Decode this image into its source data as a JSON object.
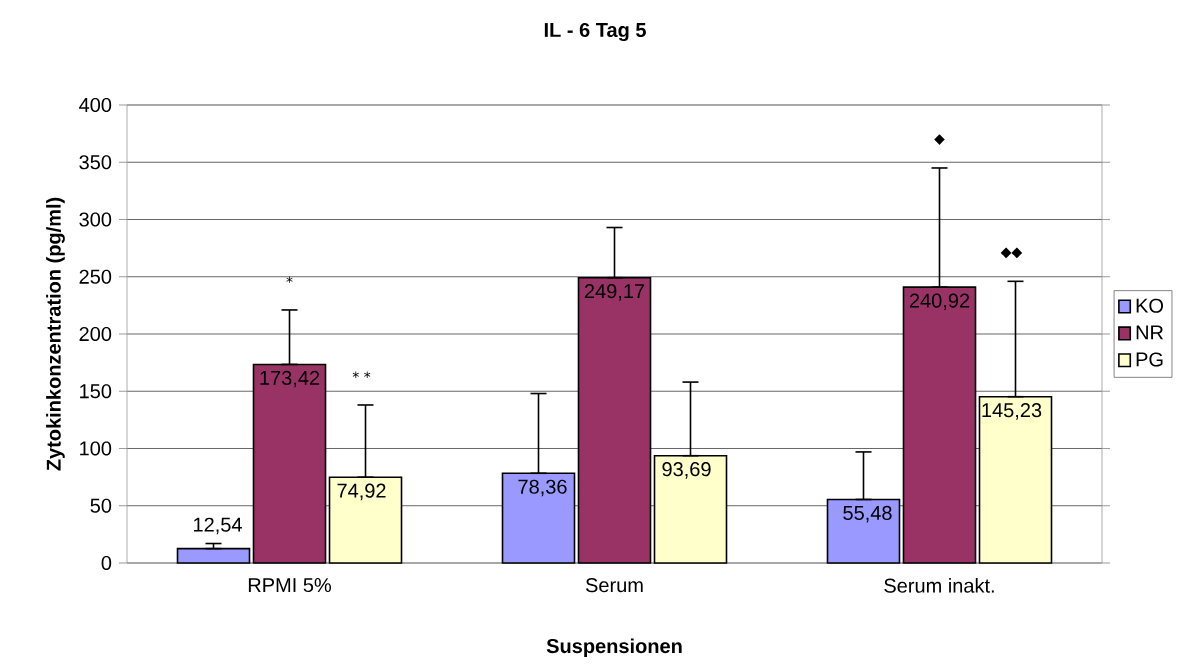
{
  "chart_data": {
    "type": "bar",
    "title": "IL - 6 Tag 5",
    "xlabel": "Suspensionen",
    "ylabel": "Zytokinkonzentration (pg/ml)",
    "categories": [
      "RPMI 5%",
      "Serum",
      "Serum inakt."
    ],
    "series": [
      {
        "name": "KO",
        "color": "#9999ff",
        "values": [
          12.54,
          78.36,
          55.48
        ],
        "value_labels": [
          "12,54",
          "78,36",
          "55,48"
        ],
        "errors": [
          [
            12.54,
            17
          ],
          [
            78.36,
            148
          ],
          [
            55.48,
            97
          ]
        ]
      },
      {
        "name": "NR",
        "color": "#993366",
        "values": [
          173.42,
          249.17,
          240.92
        ],
        "value_labels": [
          "173,42",
          "249,17",
          "240,92"
        ],
        "errors": [
          [
            173.42,
            221
          ],
          [
            249.17,
            293
          ],
          [
            240.92,
            345
          ]
        ]
      },
      {
        "name": "PG",
        "color": "#ffffcc",
        "values": [
          74.92,
          93.69,
          145.23
        ],
        "value_labels": [
          "74,92",
          "93,69",
          "145,23"
        ],
        "errors": [
          [
            74.92,
            138
          ],
          [
            93.69,
            158
          ],
          [
            145.23,
            246
          ]
        ]
      }
    ],
    "annotations": [
      "*",
      "* *",
      "◆",
      "◆◆"
    ],
    "ylim": [
      0,
      400
    ],
    "yticks": [
      0,
      50,
      100,
      150,
      200,
      250,
      300,
      350,
      400
    ],
    "grid": "y",
    "legend": "right"
  }
}
